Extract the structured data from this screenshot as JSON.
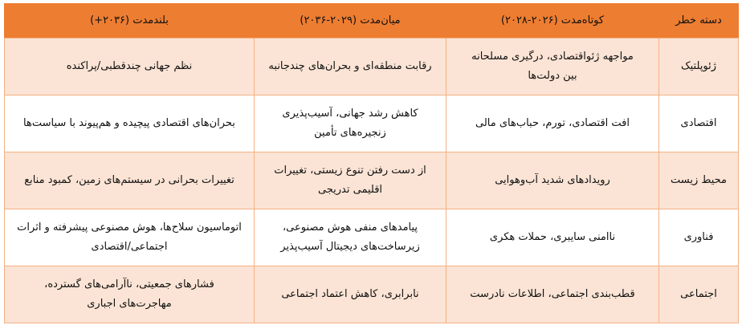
{
  "table": {
    "headers": [
      "دسته خطر",
      "کوتاه‌مدت (۲۰۲۶-۲۰۲۸)",
      "میان‌مدت (۲۰۲۹-۲۰۳۶)",
      "بلندمدت (۲۰۳۶+)"
    ],
    "rows": [
      [
        "ژئوپلتیک",
        "مواجهه ژئواقتصادی، درگیری مسلحانه\nبین دولت‌ها",
        "رقابت منطقه‌ای و بحران‌های چندجانبه",
        "نظم جهانی چندقطبی/پراکنده"
      ],
      [
        "اقتصادی",
        "افت اقتصادی، تورم، حباب‌های مالی",
        "کاهش رشد جهانی، آسیب‌پذیری\nزنجیره‌های تأمین",
        "بحران‌های اقتصادی پیچیده و هم‌پیوند با سیاست‌ها"
      ],
      [
        "محیط زیست",
        "رویدادهای شدید آب‌وهوایی",
        "از دست رفتن تنوع زیستی، تغییرات\nاقلیمی تدریجی",
        "تغییرات بحرانی در سیستم‌های زمین، کمبود منابع"
      ],
      [
        "فناوری",
        "ناامنی سایبری، حملات هکری",
        "پیامدهای منفی هوش مصنوعی،\nزیرساخت‌های دیجیتال آسیب‌پذیر",
        "اتوماسیون سلاح‌ها، هوش مصنوعی پیشرفته و اثرات\nاجتماعی/اقتصادی"
      ],
      [
        "اجتماعی",
        "قطب‌بندی اجتماعی، اطلاعات نادرست",
        "نابرابری، کاهش اعتماد اجتماعی",
        "فشارهای جمعیتی، ناآرامی‌های گسترده،\nمهاجرت‌های اجباری"
      ]
    ]
  },
  "colors": {
    "header": "#ED7D31",
    "row_alt": "#FBE4D5",
    "border": "#F4B183"
  }
}
